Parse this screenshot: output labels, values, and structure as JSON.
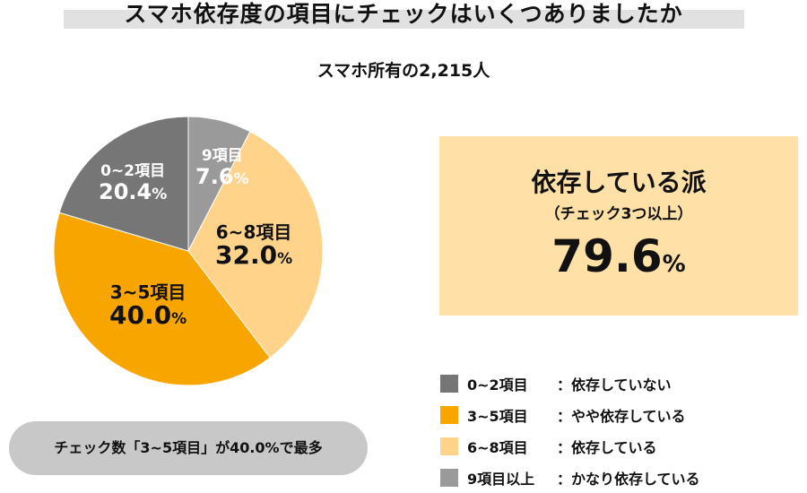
{
  "title": "スマホ依存度の項目にチェックはいくつありましたか",
  "subtitle": "スマホ所有の2,215人",
  "chart_data": {
    "type": "pie",
    "start": "top",
    "direction": "clockwise",
    "slices": [
      {
        "name": "9項目",
        "value": 7.6,
        "label": "7.6",
        "color": "#9a9a9a"
      },
      {
        "name": "6~8項目",
        "value": 32.0,
        "label": "32.0",
        "color": "#ffd38a"
      },
      {
        "name": "3~5項目",
        "value": 40.0,
        "label": "40.0",
        "color": "#f9a500"
      },
      {
        "name": "0~2項目",
        "value": 20.4,
        "label": "20.4",
        "color": "#767676"
      }
    ],
    "unit": "%"
  },
  "summary": {
    "heading": "依存している派",
    "sub": "（チェック3つ以上）",
    "value": "79.6",
    "unit": "%"
  },
  "legend": [
    {
      "range": "0~2項目",
      "desc": "：依存していない",
      "color": "#767676"
    },
    {
      "range": "3~5項目",
      "desc": "：やや依存している",
      "color": "#f9a500"
    },
    {
      "range": "6~8項目",
      "desc": "：依存している",
      "color": "#ffd38a"
    },
    {
      "range": "9項目以上",
      "desc": "：かなり依存している",
      "color": "#9a9a9a"
    }
  ],
  "note": "チェック数「3~5項目」が40.0%で最多"
}
